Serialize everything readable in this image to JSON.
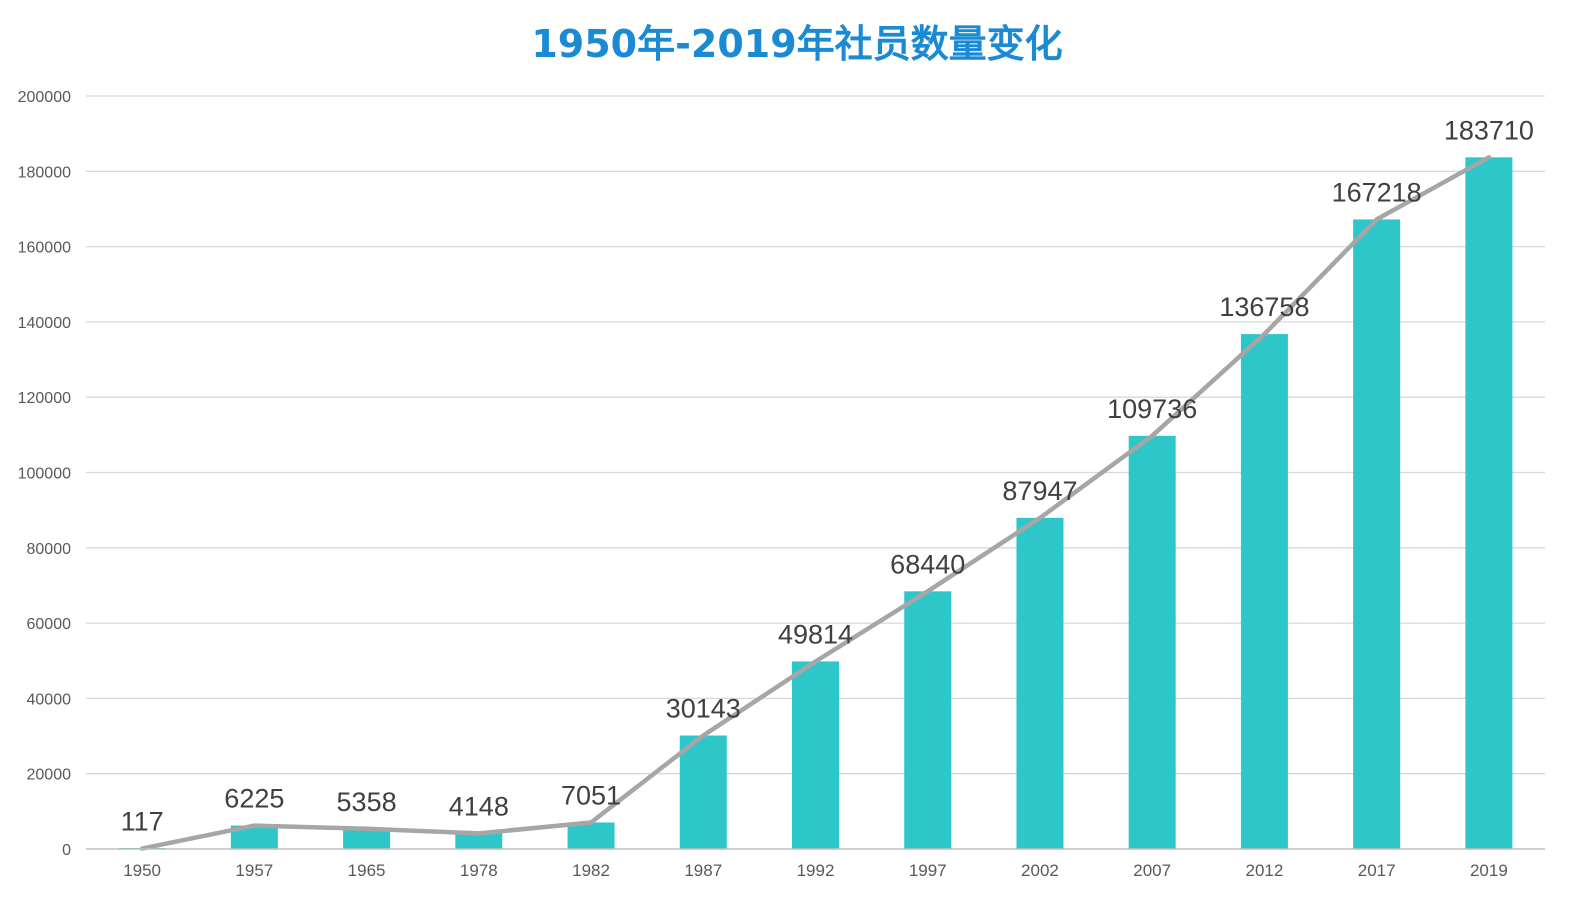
{
  "chart_data": {
    "type": "bar",
    "title": "1950年-2019年社员数量变化",
    "xlabel": "",
    "ylabel": "",
    "categories": [
      "1950",
      "1957",
      "1965",
      "1978",
      "1982",
      "1987",
      "1992",
      "1997",
      "2002",
      "2007",
      "2012",
      "2017",
      "2019"
    ],
    "series": [
      {
        "type": "bar",
        "values": [
          117,
          6225,
          5358,
          4148,
          7051,
          30143,
          49814,
          68440,
          87947,
          109736,
          136758,
          167218,
          183710
        ]
      },
      {
        "type": "line",
        "values": [
          117,
          6225,
          5358,
          4148,
          7051,
          30143,
          49814,
          68440,
          87947,
          109736,
          136758,
          167218,
          183710
        ]
      }
    ],
    "ylim": [
      0,
      200000
    ],
    "yticks": [
      0,
      20000,
      40000,
      60000,
      80000,
      100000,
      120000,
      140000,
      160000,
      180000,
      200000
    ],
    "grid": true,
    "legend": "none",
    "data_labels": true
  },
  "colors": {
    "title": "#1A8AD4",
    "bar": "#2EC7C9",
    "line": "#A6A6A6",
    "grid": "#D9D9D9",
    "axis": "#BFBFBF"
  }
}
